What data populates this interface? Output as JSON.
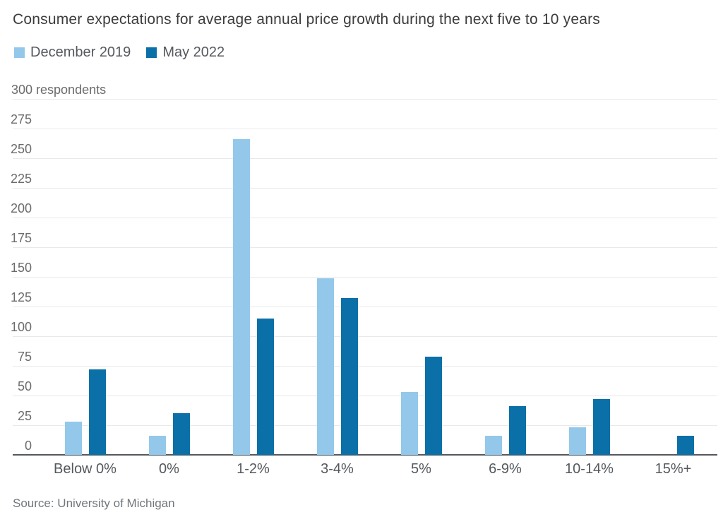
{
  "source": {
    "text": "Source: University of Michigan"
  },
  "chart_data": {
    "type": "bar",
    "title": "Consumer expectations for average annual price growth during the next five to 10 years",
    "categories": [
      "Below 0%",
      "0%",
      "1-2%",
      "3-4%",
      "5%",
      "6-9%",
      "10-14%",
      "15%+"
    ],
    "series": [
      {
        "name": "December 2019",
        "color": "#93C8EB",
        "values": [
          28,
          16,
          266,
          149,
          53,
          16,
          23,
          0
        ]
      },
      {
        "name": "May 2022",
        "color": "#0B70A8",
        "values": [
          72,
          35,
          115,
          132,
          83,
          41,
          47,
          16
        ]
      }
    ],
    "xlabel": "",
    "ylabel": "respondents",
    "ylim": [
      0,
      300
    ],
    "ytick_step": 25,
    "grid": true,
    "legend_position": "top-left"
  }
}
